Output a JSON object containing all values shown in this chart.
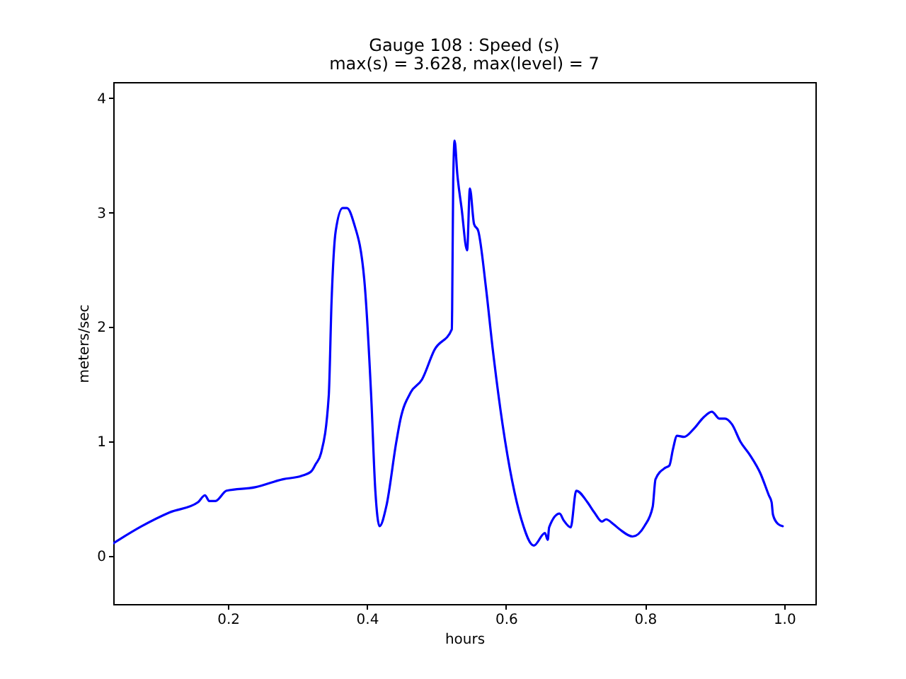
{
  "chart_data": {
    "type": "line",
    "title": "Gauge 108 : Speed (s)",
    "subtitle": "max(s) =   3.628,    max(level) = 7",
    "xlabel": "hours",
    "ylabel": "meters/sec",
    "xlim": [
      0.035,
      1.045
    ],
    "ylim": [
      -0.42,
      4.14
    ],
    "xticks": [
      0.2,
      0.4,
      0.6,
      0.8,
      {
        "value": 1,
        "label": "1.0"
      }
    ],
    "yticks": [
      0,
      1,
      2,
      3,
      4
    ],
    "grid": false,
    "series": [
      {
        "color": "#0000ff",
        "x": [
          0.035,
          0.076,
          0.116,
          0.157,
          0.167,
          0.173,
          0.182,
          0.198,
          0.239,
          0.279,
          0.306,
          0.32,
          0.326,
          0.334,
          0.345,
          0.349,
          0.355,
          0.365,
          0.371,
          0.381,
          0.396,
          0.406,
          0.412,
          0.418,
          0.428,
          0.442,
          0.448,
          0.463,
          0.479,
          0.497,
          0.522,
          0.5225,
          0.524,
          0.526,
          0.53,
          0.536,
          0.544,
          0.548,
          0.554,
          0.56,
          0.571,
          0.581,
          0.595,
          0.609,
          0.622,
          0.64,
          0.656,
          0.66,
          0.662,
          0.677,
          0.683,
          0.693,
          0.701,
          0.717,
          0.727,
          0.738,
          0.744,
          0.754,
          0.764,
          0.782,
          0.799,
          0.811,
          0.815,
          0.829,
          0.835,
          0.84,
          0.846,
          0.856,
          0.87,
          0.884,
          0.896,
          0.907,
          0.915,
          0.925,
          0.937,
          0.951,
          0.966,
          0.978,
          0.982,
          0.984,
          0.991,
          0.998
        ],
        "values": [
          0.11,
          0.26,
          0.38,
          0.47,
          0.53,
          0.48,
          0.48,
          0.57,
          0.6,
          0.67,
          0.7,
          0.74,
          0.8,
          0.9,
          1.4,
          2.22,
          2.84,
          3.04,
          3.04,
          2.91,
          2.42,
          1.4,
          0.57,
          0.26,
          0.44,
          0.99,
          1.19,
          1.43,
          1.54,
          1.8,
          1.98,
          2.16,
          3.27,
          3.628,
          3.33,
          3.04,
          2.67,
          3.21,
          2.9,
          2.84,
          2.35,
          1.8,
          1.15,
          0.65,
          0.32,
          0.09,
          0.2,
          0.14,
          0.25,
          0.37,
          0.31,
          0.25,
          0.57,
          0.47,
          0.38,
          0.3,
          0.32,
          0.28,
          0.23,
          0.17,
          0.26,
          0.43,
          0.67,
          0.77,
          0.79,
          0.93,
          1.05,
          1.04,
          1.11,
          1.21,
          1.26,
          1.2,
          1.2,
          1.15,
          1.0,
          0.88,
          0.72,
          0.53,
          0.47,
          0.36,
          0.28,
          0.26
        ]
      }
    ]
  }
}
